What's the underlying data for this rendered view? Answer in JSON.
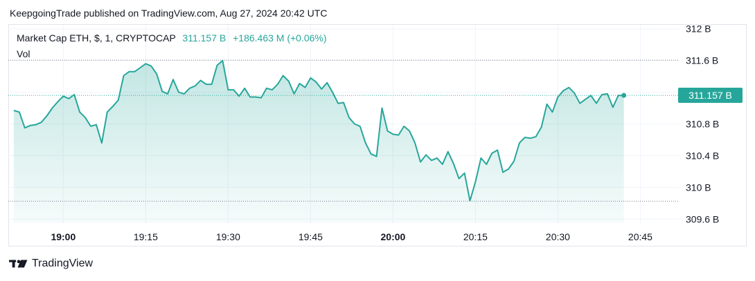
{
  "header": {
    "published": "KeepgoingTrade published on TradingView.com, Aug 27, 2024 20:42 UTC"
  },
  "legend": {
    "symbol": "Market Cap ETH, $, 1, CRYPTOCAP",
    "last_value": "311.157 B",
    "change": "+186.463 M (+0.06%)",
    "vol_label": "Vol"
  },
  "price_tag": "311.157 B",
  "footer": {
    "brand": "TradingView",
    "logo_icon": "tradingview-logo-icon"
  },
  "colors": {
    "line": "#26a69a",
    "fill_top": "#26a69a",
    "grid": "#f0f3fa",
    "text": "#131722"
  },
  "chart_data": {
    "type": "area",
    "title": "Market Cap ETH, $, 1, CRYPTOCAP",
    "xlabel": "",
    "ylabel": "",
    "x_tick_labels": [
      "19:00",
      "19:15",
      "19:30",
      "19:45",
      "20:00",
      "20:15",
      "20:30",
      "20:45"
    ],
    "x_tick_bold": [
      "19:00",
      "20:00"
    ],
    "y_tick_labels": [
      "312 B",
      "311.6 B",
      "311.2 B",
      "310.8 B",
      "310.4 B",
      "310 B",
      "309.6 B"
    ],
    "y_ticks": [
      312,
      311.6,
      311.2,
      310.8,
      310.4,
      310,
      309.6
    ],
    "ylim": [
      309.55,
      312.05
    ],
    "x_range_minutes": [
      "18:50",
      "20:52"
    ],
    "unit": "B",
    "x": [
      "18:51",
      "18:52",
      "18:53",
      "18:54",
      "18:55",
      "18:56",
      "18:57",
      "18:58",
      "18:59",
      "19:00",
      "19:01",
      "19:02",
      "19:03",
      "19:04",
      "19:05",
      "19:06",
      "19:07",
      "19:08",
      "19:09",
      "19:10",
      "19:11",
      "19:12",
      "19:13",
      "19:14",
      "19:15",
      "19:16",
      "19:17",
      "19:18",
      "19:19",
      "19:20",
      "19:21",
      "19:22",
      "19:23",
      "19:24",
      "19:25",
      "19:26",
      "19:27",
      "19:28",
      "19:29",
      "19:30",
      "19:31",
      "19:32",
      "19:33",
      "19:34",
      "19:35",
      "19:36",
      "19:37",
      "19:38",
      "19:39",
      "19:40",
      "19:41",
      "19:42",
      "19:43",
      "19:44",
      "19:45",
      "19:46",
      "19:47",
      "19:48",
      "19:49",
      "19:50",
      "19:51",
      "19:52",
      "19:53",
      "19:54",
      "19:55",
      "19:56",
      "19:57",
      "19:58",
      "19:59",
      "20:00",
      "20:01",
      "20:02",
      "20:03",
      "20:04",
      "20:05",
      "20:06",
      "20:07",
      "20:08",
      "20:09",
      "20:10",
      "20:11",
      "20:12",
      "20:13",
      "20:14",
      "20:15",
      "20:16",
      "20:17",
      "20:18",
      "20:19",
      "20:20",
      "20:21",
      "20:22",
      "20:23",
      "20:24",
      "20:25",
      "20:26",
      "20:27",
      "20:28",
      "20:29",
      "20:30",
      "20:31",
      "20:32",
      "20:33",
      "20:34",
      "20:35",
      "20:36",
      "20:37",
      "20:38",
      "20:39",
      "20:40",
      "20:41",
      "20:42"
    ],
    "values": [
      310.97,
      310.95,
      310.75,
      310.78,
      310.79,
      310.82,
      310.9,
      311.0,
      311.08,
      311.15,
      311.12,
      311.17,
      310.95,
      310.88,
      310.77,
      310.79,
      310.56,
      310.95,
      311.02,
      311.1,
      311.41,
      311.46,
      311.46,
      311.51,
      311.56,
      311.53,
      311.43,
      311.21,
      311.18,
      311.36,
      311.2,
      311.18,
      311.25,
      311.28,
      311.35,
      311.3,
      311.3,
      311.54,
      311.6,
      311.23,
      311.23,
      311.15,
      311.25,
      311.14,
      311.14,
      311.13,
      311.25,
      311.23,
      311.3,
      311.41,
      311.34,
      311.18,
      311.31,
      311.26,
      311.38,
      311.33,
      311.24,
      311.32,
      311.2,
      311.06,
      311.07,
      310.88,
      310.8,
      310.77,
      310.56,
      310.42,
      310.39,
      311.0,
      310.71,
      310.67,
      310.66,
      310.77,
      310.71,
      310.56,
      310.32,
      310.41,
      310.34,
      310.37,
      310.29,
      310.45,
      310.3,
      310.11,
      310.18,
      309.83,
      310.07,
      310.37,
      310.29,
      310.43,
      310.47,
      310.19,
      310.23,
      310.33,
      310.56,
      310.63,
      310.62,
      310.64,
      310.76,
      311.05,
      310.95,
      311.14,
      311.22,
      311.26,
      311.19,
      311.06,
      311.11,
      311.16,
      311.06,
      311.17,
      311.18,
      311.01,
      311.16,
      311.16
    ]
  }
}
